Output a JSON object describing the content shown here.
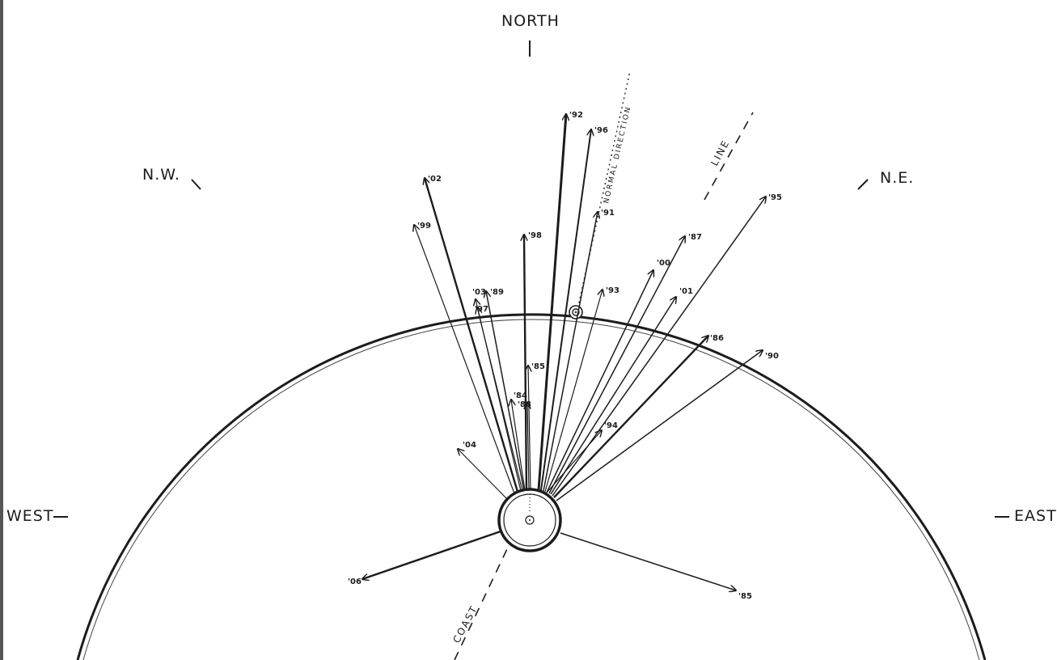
{
  "compass": {
    "north": "NORTH",
    "northwest": "N.W.",
    "northeast": "N.E.",
    "west": "WEST",
    "east": "EAST"
  },
  "reference_lines": {
    "coast": "COAST",
    "line": "LINE",
    "normal_direction": "NORMAL DIRECTION"
  },
  "arrows": [
    {
      "year": "'92"
    },
    {
      "year": "'96"
    },
    {
      "year": "'02"
    },
    {
      "year": "'91"
    },
    {
      "year": "'99"
    },
    {
      "year": "'98"
    },
    {
      "year": "'87"
    },
    {
      "year": "'95"
    },
    {
      "year": "'00"
    },
    {
      "year": "'03"
    },
    {
      "year": "'97"
    },
    {
      "year": "'89"
    },
    {
      "year": "'93"
    },
    {
      "year": "'01"
    },
    {
      "year": "'86"
    },
    {
      "year": "'85"
    },
    {
      "year": "'90"
    },
    {
      "year": "'84"
    },
    {
      "year": "'88"
    },
    {
      "year": "'94"
    },
    {
      "year": "'04"
    },
    {
      "year": "'06"
    },
    {
      "year": "'85"
    }
  ]
}
